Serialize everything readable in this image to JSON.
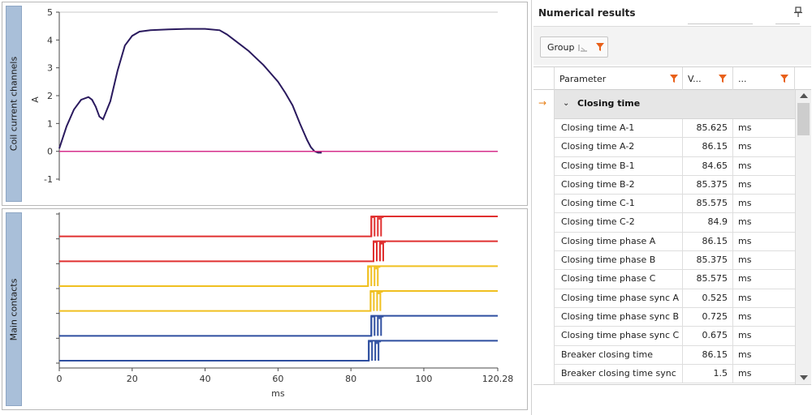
{
  "coil_chart": {
    "side_label": "Coil current channels",
    "ylabel": "A",
    "y_ticks": [
      "5",
      "4",
      "3",
      "2",
      "1",
      "0",
      "-1"
    ]
  },
  "contacts_chart": {
    "side_label": "Main contacts",
    "xlabel": "ms",
    "x_ticks": [
      "0",
      "20",
      "40",
      "60",
      "80",
      "100",
      "120.28"
    ]
  },
  "chart_data": [
    {
      "type": "line",
      "xlim": [
        0,
        120.28
      ],
      "ylim": [
        -1,
        5
      ],
      "ylabel": "A",
      "series": [
        {
          "color": "#2a1a5e",
          "x": [
            0,
            2,
            4,
            6,
            8,
            9,
            10,
            11,
            12,
            14,
            16,
            18,
            20,
            22,
            25,
            30,
            35,
            40,
            44,
            46,
            48,
            50,
            52,
            54,
            56,
            58,
            60,
            62,
            64,
            66,
            67,
            68,
            69,
            70,
            71,
            72
          ],
          "y": [
            0.1,
            0.9,
            1.5,
            1.85,
            1.95,
            1.85,
            1.6,
            1.25,
            1.15,
            1.8,
            2.9,
            3.8,
            4.15,
            4.3,
            4.35,
            4.38,
            4.4,
            4.4,
            4.35,
            4.2,
            4.0,
            3.8,
            3.6,
            3.35,
            3.1,
            2.8,
            2.5,
            2.1,
            1.65,
            1.0,
            0.7,
            0.4,
            0.15,
            0.0,
            -0.05,
            -0.05
          ]
        },
        {
          "color": "#d62f8c",
          "x": [
            0,
            120.28
          ],
          "y": [
            0,
            0
          ]
        }
      ]
    },
    {
      "type": "line",
      "xlim": [
        0,
        120.28
      ],
      "xlabel": "ms",
      "series": [
        {
          "color": "#e03030",
          "switch_ms": 85.6
        },
        {
          "color": "#e03030",
          "switch_ms": 86.2
        },
        {
          "color": "#f0c020",
          "switch_ms": 84.7
        },
        {
          "color": "#f0c020",
          "switch_ms": 85.4
        },
        {
          "color": "#2f4fa0",
          "switch_ms": 85.6
        },
        {
          "color": "#2f4fa0",
          "switch_ms": 84.9
        }
      ]
    }
  ],
  "results": {
    "title": "Numerical results",
    "group_label": "Group",
    "columns": {
      "parameter": "Parameter",
      "value": "V...",
      "unit": "..."
    },
    "group_name": "Closing time",
    "rows": [
      {
        "parameter": "Closing time A-1",
        "value": "85.625",
        "unit": "ms"
      },
      {
        "parameter": "Closing time A-2",
        "value": "86.15",
        "unit": "ms"
      },
      {
        "parameter": "Closing time B-1",
        "value": "84.65",
        "unit": "ms"
      },
      {
        "parameter": "Closing time B-2",
        "value": "85.375",
        "unit": "ms"
      },
      {
        "parameter": "Closing time C-1",
        "value": "85.575",
        "unit": "ms"
      },
      {
        "parameter": "Closing time C-2",
        "value": "84.9",
        "unit": "ms"
      },
      {
        "parameter": "Closing time phase A",
        "value": "86.15",
        "unit": "ms"
      },
      {
        "parameter": "Closing time phase B",
        "value": "85.375",
        "unit": "ms"
      },
      {
        "parameter": "Closing time phase C",
        "value": "85.575",
        "unit": "ms"
      },
      {
        "parameter": "Closing time phase sync A",
        "value": "0.525",
        "unit": "ms"
      },
      {
        "parameter": "Closing time phase sync B",
        "value": "0.725",
        "unit": "ms"
      },
      {
        "parameter": "Closing time phase sync C",
        "value": "0.675",
        "unit": "ms"
      },
      {
        "parameter": "Breaker closing time",
        "value": "86.15",
        "unit": "ms"
      },
      {
        "parameter": "Breaker closing time sync",
        "value": "1.5",
        "unit": "ms"
      }
    ]
  }
}
